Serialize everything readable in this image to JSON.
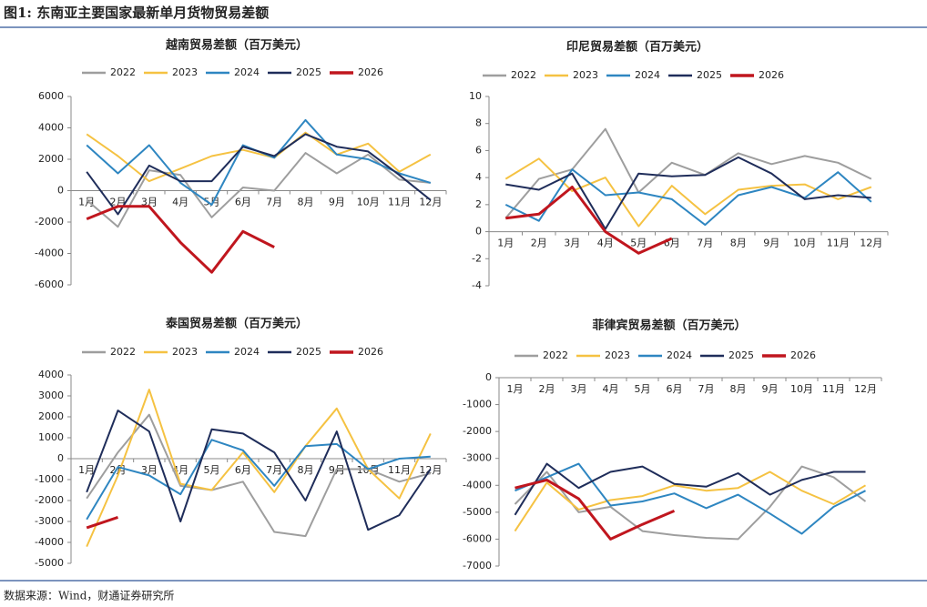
{
  "header": {
    "title": "图1: 东南亚主要国家最新单月货物贸易差额"
  },
  "chart_data": [
    {
      "type": "line",
      "title": "越南贸易差额（百万美元）",
      "categories": [
        "1月",
        "2月",
        "3月",
        "4月",
        "5月",
        "6月",
        "7月",
        "8月",
        "9月",
        "10月",
        "11月",
        "12月"
      ],
      "ylim": [
        -6000,
        6000
      ],
      "yticks": [
        -6000,
        -4000,
        -2000,
        0,
        2000,
        4000,
        6000
      ],
      "series": [
        {
          "name": "2022",
          "color": "#9e9e9e",
          "values": [
            -600,
            -2300,
            1300,
            1000,
            -1700,
            200,
            0,
            2400,
            1100,
            2300,
            700,
            500
          ]
        },
        {
          "name": "2023",
          "color": "#f5c242",
          "values": [
            3600,
            2200,
            600,
            1400,
            2200,
            2600,
            2100,
            3700,
            2300,
            3000,
            1200,
            2300
          ]
        },
        {
          "name": "2024",
          "color": "#2e86c1",
          "values": [
            2900,
            1100,
            2900,
            500,
            -900,
            2900,
            2100,
            4500,
            2300,
            2000,
            1100,
            500
          ]
        },
        {
          "name": "2025",
          "color": "#1f2d5a",
          "values": [
            1200,
            -1500,
            1600,
            600,
            600,
            2800,
            2200,
            3600,
            2800,
            2500,
            1000,
            -600
          ]
        },
        {
          "name": "2026",
          "color": "#c0161e",
          "values": [
            -1800,
            -1000,
            -1000,
            -3300,
            -5200,
            -2600,
            -3600,
            null,
            null,
            null,
            null,
            null
          ]
        }
      ]
    },
    {
      "type": "line",
      "title": "印尼贸易差额（百万美元）",
      "categories": [
        "1月",
        "2月",
        "3月",
        "4月",
        "5月",
        "6月",
        "7月",
        "8月",
        "9月",
        "10月",
        "11月",
        "12月"
      ],
      "ylim": [
        -4,
        10
      ],
      "yticks": [
        -4,
        -2,
        0,
        2,
        4,
        6,
        8,
        10
      ],
      "series": [
        {
          "name": "2022",
          "color": "#9e9e9e",
          "values": [
            1.0,
            3.9,
            4.6,
            7.6,
            2.9,
            5.1,
            4.2,
            5.8,
            5.0,
            5.6,
            5.1,
            3.9
          ]
        },
        {
          "name": "2023",
          "color": "#f5c242",
          "values": [
            3.9,
            5.4,
            3.0,
            4.0,
            0.4,
            3.4,
            1.3,
            3.1,
            3.4,
            3.5,
            2.4,
            3.3
          ]
        },
        {
          "name": "2024",
          "color": "#2e86c1",
          "values": [
            2.0,
            0.8,
            4.6,
            2.7,
            2.9,
            2.4,
            0.5,
            2.7,
            3.3,
            2.5,
            4.4,
            2.2
          ]
        },
        {
          "name": "2025",
          "color": "#1f2d5a",
          "values": [
            3.5,
            3.1,
            4.3,
            0.2,
            4.3,
            4.1,
            4.2,
            5.5,
            4.3,
            2.4,
            2.7,
            2.5
          ]
        },
        {
          "name": "2026",
          "color": "#c0161e",
          "values": [
            1.0,
            1.3,
            3.3,
            0.0,
            -1.6,
            -0.5,
            null,
            null,
            null,
            null,
            null,
            null
          ]
        }
      ]
    },
    {
      "type": "line",
      "title": "泰国贸易差额（百万美元）",
      "categories": [
        "1月",
        "2月",
        "3月",
        "4月",
        "5月",
        "6月",
        "7月",
        "8月",
        "9月",
        "10月",
        "11月",
        "12月"
      ],
      "ylim": [
        -5000,
        4000
      ],
      "yticks": [
        -5000,
        -4000,
        -3000,
        -2000,
        -1000,
        0,
        1000,
        2000,
        3000,
        4000
      ],
      "series": [
        {
          "name": "2022",
          "color": "#9e9e9e",
          "values": [
            -1900,
            300,
            2100,
            -1300,
            -1500,
            -1100,
            -3500,
            -3700,
            -500,
            -500,
            -1100,
            -700
          ]
        },
        {
          "name": "2023",
          "color": "#f5c242",
          "values": [
            -4200,
            -800,
            3300,
            -1200,
            -1500,
            300,
            -1600,
            600,
            2400,
            -500,
            -1900,
            1200
          ]
        },
        {
          "name": "2024",
          "color": "#2e86c1",
          "values": [
            -2900,
            -400,
            -800,
            -1700,
            900,
            400,
            -1300,
            600,
            700,
            -500,
            0,
            100
          ]
        },
        {
          "name": "2025",
          "color": "#1f2d5a",
          "values": [
            -1600,
            2300,
            1300,
            -3000,
            1400,
            1200,
            300,
            -2000,
            1300,
            -3400,
            -2700,
            -500
          ]
        },
        {
          "name": "2026",
          "color": "#c0161e",
          "values": [
            -3300,
            -2800,
            null,
            null,
            null,
            null,
            null,
            null,
            null,
            null,
            null,
            null
          ]
        }
      ]
    },
    {
      "type": "line",
      "title": "菲律宾贸易差额（百万美元）",
      "categories": [
        "1月",
        "2月",
        "3月",
        "4月",
        "5月",
        "6月",
        "7月",
        "8月",
        "9月",
        "10月",
        "11月",
        "12月"
      ],
      "ylim": [
        -7000,
        0
      ],
      "yticks": [
        -7000,
        -6000,
        -5000,
        -4000,
        -3000,
        -2000,
        -1000,
        0
      ],
      "series": [
        {
          "name": "2022",
          "color": "#9e9e9e",
          "values": [
            -4700,
            -3500,
            -5000,
            -4800,
            -5700,
            -5850,
            -5950,
            -6000,
            -4800,
            -3300,
            -3700,
            -4600
          ]
        },
        {
          "name": "2023",
          "color": "#f5c242",
          "values": [
            -5700,
            -3900,
            -4900,
            -4550,
            -4400,
            -4000,
            -4200,
            -4100,
            -3500,
            -4200,
            -4700,
            -4000
          ]
        },
        {
          "name": "2024",
          "color": "#2e86c1",
          "values": [
            -4200,
            -3700,
            -3200,
            -4750,
            -4600,
            -4300,
            -4850,
            -4350,
            -5050,
            -5800,
            -4800,
            -4200
          ]
        },
        {
          "name": "2025",
          "color": "#1f2d5a",
          "values": [
            -5100,
            -3200,
            -4100,
            -3500,
            -3300,
            -3950,
            -4050,
            -3550,
            -4350,
            -3800,
            -3500,
            -3500
          ]
        },
        {
          "name": "2026",
          "color": "#c0161e",
          "values": [
            -4100,
            -3800,
            -4500,
            -6000,
            -5450,
            -4950,
            null,
            null,
            null,
            null,
            null,
            null
          ]
        }
      ]
    }
  ],
  "source": "数据来源：Wind，财通证券研究所"
}
